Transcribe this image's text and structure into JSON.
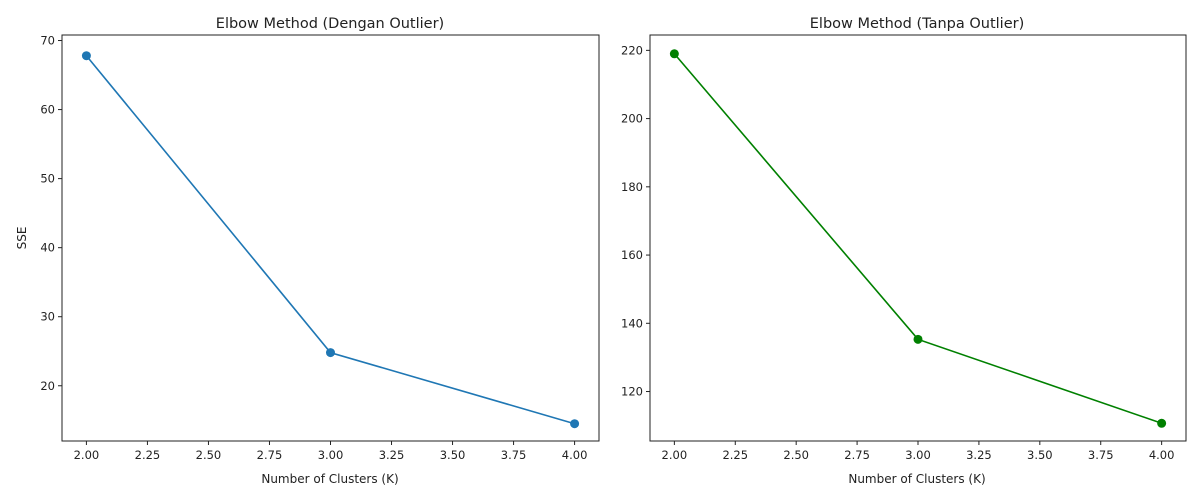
{
  "chart_data": [
    {
      "type": "line",
      "title": "Elbow Method (Dengan Outlier)",
      "xlabel": "Number of Clusters (K)",
      "ylabel": "SSE",
      "xlim": [
        1.9,
        4.1
      ],
      "ylim": [
        12.0,
        70.8
      ],
      "xticks": [
        2.0,
        2.25,
        2.5,
        2.75,
        3.0,
        3.25,
        3.5,
        3.75,
        4.0
      ],
      "xtick_labels": [
        "2.00",
        "2.25",
        "2.50",
        "2.75",
        "3.00",
        "3.25",
        "3.50",
        "3.75",
        "4.00"
      ],
      "yticks": [
        20,
        30,
        40,
        50,
        60,
        70
      ],
      "ytick_labels": [
        "20",
        "30",
        "40",
        "50",
        "60",
        "70"
      ],
      "grid": false,
      "series": [
        {
          "x": [
            2,
            3,
            4
          ],
          "y": [
            67.8,
            24.8,
            14.5
          ],
          "color": "#1f77b4",
          "marker": "circle"
        }
      ]
    },
    {
      "type": "line",
      "title": "Elbow Method (Tanpa Outlier)",
      "xlabel": "Number of Clusters (K)",
      "ylabel": "",
      "xlim": [
        1.9,
        4.1
      ],
      "ylim": [
        105.5,
        224.5
      ],
      "xticks": [
        2.0,
        2.25,
        2.5,
        2.75,
        3.0,
        3.25,
        3.5,
        3.75,
        4.0
      ],
      "xtick_labels": [
        "2.00",
        "2.25",
        "2.50",
        "2.75",
        "3.00",
        "3.25",
        "3.50",
        "3.75",
        "4.00"
      ],
      "yticks": [
        120,
        140,
        160,
        180,
        200,
        220
      ],
      "ytick_labels": [
        "120",
        "140",
        "160",
        "180",
        "200",
        "220"
      ],
      "grid": false,
      "series": [
        {
          "x": [
            2,
            3,
            4
          ],
          "y": [
            219.0,
            135.3,
            110.7
          ],
          "color": "#008000",
          "marker": "circle"
        }
      ]
    }
  ]
}
